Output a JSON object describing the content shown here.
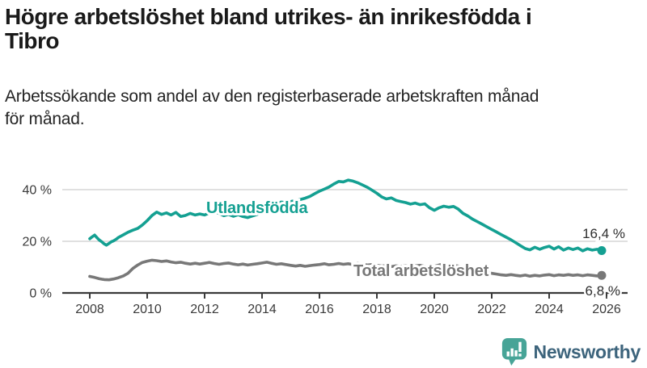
{
  "header": {
    "title_line1": "Högre arbetslöshet bland utrikes- än inrikesfödda i",
    "title_line2": "Tibro",
    "subtitle_line1": "Arbetssökande som andel av den registerbaserade arbetskraften månad",
    "subtitle_line2": "för månad."
  },
  "footer": {
    "brand": "Newsworthy"
  },
  "colors": {
    "accent_teal": "#14a092",
    "series_gray": "#787878",
    "grid": "#d6d6d6",
    "axis": "#3a3a3a",
    "tick_text": "#3a3a3a",
    "value_text": "#2e2e2e",
    "title_text": "#1a1a1a",
    "logo_icon": "#47a497",
    "logo_text": "#3d647c"
  },
  "chart_data": {
    "type": "line",
    "x_axis": {
      "ticks": [
        2008,
        2010,
        2012,
        2014,
        2016,
        2018,
        2020,
        2022,
        2024,
        2026
      ],
      "range": [
        2008,
        2026.5
      ]
    },
    "y_axis": {
      "ticks": [
        {
          "value": 0,
          "label": "0 %"
        },
        {
          "value": 20,
          "label": "20 %"
        },
        {
          "value": 40,
          "label": "40 %"
        }
      ],
      "range": [
        0,
        46
      ]
    },
    "grid": "horizontal-only",
    "legend_position": "inline-labels",
    "series": [
      {
        "name": "Utlandsfödda",
        "color": "#14a092",
        "end_label": "16,4 %",
        "end_value": 16.4,
        "points": [
          [
            2008.0,
            21.0
          ],
          [
            2008.08,
            21.7
          ],
          [
            2008.17,
            22.4
          ],
          [
            2008.25,
            21.4
          ],
          [
            2008.33,
            20.5
          ],
          [
            2008.42,
            19.8
          ],
          [
            2008.5,
            19.0
          ],
          [
            2008.58,
            18.5
          ],
          [
            2008.67,
            19.2
          ],
          [
            2008.75,
            19.8
          ],
          [
            2008.83,
            20.2
          ],
          [
            2008.92,
            20.8
          ],
          [
            2009.0,
            21.5
          ],
          [
            2009.17,
            22.5
          ],
          [
            2009.33,
            23.5
          ],
          [
            2009.5,
            24.3
          ],
          [
            2009.67,
            25.0
          ],
          [
            2009.83,
            26.3
          ],
          [
            2010.0,
            28.0
          ],
          [
            2010.17,
            30.0
          ],
          [
            2010.33,
            31.3
          ],
          [
            2010.5,
            30.4
          ],
          [
            2010.67,
            31.0
          ],
          [
            2010.83,
            30.2
          ],
          [
            2011.0,
            31.2
          ],
          [
            2011.17,
            29.6
          ],
          [
            2011.33,
            30.0
          ],
          [
            2011.5,
            30.8
          ],
          [
            2011.67,
            30.2
          ],
          [
            2011.83,
            30.6
          ],
          [
            2012.0,
            30.2
          ],
          [
            2012.17,
            31.0
          ],
          [
            2012.33,
            31.6
          ],
          [
            2012.5,
            30.8
          ],
          [
            2012.67,
            29.9
          ],
          [
            2012.83,
            30.4
          ],
          [
            2013.0,
            29.7
          ],
          [
            2013.17,
            30.3
          ],
          [
            2013.33,
            29.6
          ],
          [
            2013.5,
            29.2
          ],
          [
            2013.67,
            29.8
          ],
          [
            2013.83,
            30.4
          ],
          [
            2014.0,
            31.2
          ],
          [
            2014.17,
            32.4
          ],
          [
            2014.33,
            33.6
          ],
          [
            2014.5,
            34.6
          ],
          [
            2014.67,
            35.2
          ],
          [
            2014.83,
            35.0
          ],
          [
            2015.0,
            35.4
          ],
          [
            2015.17,
            35.8
          ],
          [
            2015.33,
            36.2
          ],
          [
            2015.5,
            36.7
          ],
          [
            2015.67,
            37.4
          ],
          [
            2015.83,
            38.4
          ],
          [
            2016.0,
            39.4
          ],
          [
            2016.17,
            40.2
          ],
          [
            2016.33,
            41.0
          ],
          [
            2016.5,
            42.2
          ],
          [
            2016.67,
            43.2
          ],
          [
            2016.83,
            43.0
          ],
          [
            2017.0,
            43.7
          ],
          [
            2017.17,
            43.3
          ],
          [
            2017.33,
            42.7
          ],
          [
            2017.5,
            41.8
          ],
          [
            2017.67,
            40.9
          ],
          [
            2017.83,
            39.8
          ],
          [
            2018.0,
            38.6
          ],
          [
            2018.17,
            37.2
          ],
          [
            2018.33,
            36.4
          ],
          [
            2018.5,
            36.8
          ],
          [
            2018.67,
            35.8
          ],
          [
            2018.83,
            35.4
          ],
          [
            2019.0,
            35.0
          ],
          [
            2019.17,
            34.4
          ],
          [
            2019.33,
            34.8
          ],
          [
            2019.5,
            34.2
          ],
          [
            2019.67,
            34.5
          ],
          [
            2019.83,
            33.0
          ],
          [
            2020.0,
            32.0
          ],
          [
            2020.17,
            33.0
          ],
          [
            2020.33,
            33.6
          ],
          [
            2020.5,
            33.2
          ],
          [
            2020.67,
            33.5
          ],
          [
            2020.83,
            32.5
          ],
          [
            2021.0,
            30.8
          ],
          [
            2021.17,
            29.8
          ],
          [
            2021.33,
            28.6
          ],
          [
            2021.5,
            27.6
          ],
          [
            2021.67,
            26.6
          ],
          [
            2021.83,
            25.6
          ],
          [
            2022.0,
            24.6
          ],
          [
            2022.17,
            23.6
          ],
          [
            2022.33,
            22.6
          ],
          [
            2022.5,
            21.6
          ],
          [
            2022.67,
            20.6
          ],
          [
            2022.83,
            19.5
          ],
          [
            2023.0,
            18.3
          ],
          [
            2023.17,
            17.2
          ],
          [
            2023.33,
            16.7
          ],
          [
            2023.5,
            17.7
          ],
          [
            2023.67,
            16.9
          ],
          [
            2023.83,
            17.6
          ],
          [
            2024.0,
            18.1
          ],
          [
            2024.17,
            17.0
          ],
          [
            2024.33,
            17.9
          ],
          [
            2024.5,
            16.6
          ],
          [
            2024.67,
            17.4
          ],
          [
            2024.83,
            16.8
          ],
          [
            2025.0,
            17.4
          ],
          [
            2025.17,
            16.3
          ],
          [
            2025.33,
            17.1
          ],
          [
            2025.5,
            16.6
          ],
          [
            2025.67,
            16.9
          ],
          [
            2025.83,
            16.4
          ]
        ]
      },
      {
        "name": "Total arbetslöshet",
        "color": "#787878",
        "end_label": "6,8 %",
        "end_value": 6.8,
        "points": [
          [
            2008.0,
            6.4
          ],
          [
            2008.17,
            6.0
          ],
          [
            2008.33,
            5.5
          ],
          [
            2008.5,
            5.2
          ],
          [
            2008.67,
            5.1
          ],
          [
            2008.83,
            5.4
          ],
          [
            2009.0,
            5.9
          ],
          [
            2009.17,
            6.6
          ],
          [
            2009.33,
            7.6
          ],
          [
            2009.5,
            9.5
          ],
          [
            2009.67,
            10.8
          ],
          [
            2009.83,
            11.8
          ],
          [
            2010.0,
            12.3
          ],
          [
            2010.17,
            12.7
          ],
          [
            2010.33,
            12.5
          ],
          [
            2010.5,
            12.2
          ],
          [
            2010.67,
            12.4
          ],
          [
            2010.83,
            12.0
          ],
          [
            2011.0,
            11.7
          ],
          [
            2011.17,
            11.9
          ],
          [
            2011.33,
            11.5
          ],
          [
            2011.5,
            11.2
          ],
          [
            2011.67,
            11.5
          ],
          [
            2011.83,
            11.2
          ],
          [
            2012.0,
            11.5
          ],
          [
            2012.17,
            11.8
          ],
          [
            2012.33,
            11.4
          ],
          [
            2012.5,
            11.1
          ],
          [
            2012.67,
            11.4
          ],
          [
            2012.83,
            11.6
          ],
          [
            2013.0,
            11.2
          ],
          [
            2013.17,
            10.9
          ],
          [
            2013.33,
            11.2
          ],
          [
            2013.5,
            10.8
          ],
          [
            2013.67,
            11.1
          ],
          [
            2013.83,
            11.3
          ],
          [
            2014.0,
            11.6
          ],
          [
            2014.17,
            11.9
          ],
          [
            2014.33,
            11.5
          ],
          [
            2014.5,
            11.1
          ],
          [
            2014.67,
            11.3
          ],
          [
            2014.83,
            11.0
          ],
          [
            2015.0,
            10.7
          ],
          [
            2015.17,
            10.4
          ],
          [
            2015.33,
            10.7
          ],
          [
            2015.5,
            10.3
          ],
          [
            2015.67,
            10.6
          ],
          [
            2015.83,
            10.8
          ],
          [
            2016.0,
            11.0
          ],
          [
            2016.17,
            11.3
          ],
          [
            2016.33,
            10.9
          ],
          [
            2016.5,
            11.1
          ],
          [
            2016.67,
            11.4
          ],
          [
            2016.83,
            11.1
          ],
          [
            2017.0,
            11.3
          ],
          [
            2017.17,
            11.0
          ],
          [
            2017.33,
            11.4
          ],
          [
            2017.5,
            11.1
          ],
          [
            2017.67,
            10.8
          ],
          [
            2017.83,
            11.0
          ],
          [
            2018.0,
            10.7
          ],
          [
            2018.17,
            10.4
          ],
          [
            2018.33,
            10.6
          ],
          [
            2018.5,
            10.2
          ],
          [
            2018.67,
            10.5
          ],
          [
            2018.83,
            10.3
          ],
          [
            2019.0,
            10.5
          ],
          [
            2019.17,
            10.2
          ],
          [
            2019.33,
            10.5
          ],
          [
            2019.5,
            10.7
          ],
          [
            2019.67,
            10.3
          ],
          [
            2019.83,
            10.1
          ],
          [
            2020.0,
            10.3
          ],
          [
            2020.17,
            10.8
          ],
          [
            2020.33,
            11.3
          ],
          [
            2020.5,
            11.0
          ],
          [
            2020.67,
            10.7
          ],
          [
            2020.83,
            10.4
          ],
          [
            2021.0,
            10.1
          ],
          [
            2021.17,
            9.6
          ],
          [
            2021.33,
            9.1
          ],
          [
            2021.5,
            8.7
          ],
          [
            2021.67,
            8.3
          ],
          [
            2021.83,
            7.9
          ],
          [
            2022.0,
            7.6
          ],
          [
            2022.17,
            7.3
          ],
          [
            2022.33,
            7.0
          ],
          [
            2022.5,
            6.8
          ],
          [
            2022.67,
            7.1
          ],
          [
            2022.83,
            6.8
          ],
          [
            2023.0,
            6.6
          ],
          [
            2023.17,
            6.9
          ],
          [
            2023.33,
            6.5
          ],
          [
            2023.5,
            6.8
          ],
          [
            2023.67,
            6.6
          ],
          [
            2023.83,
            6.9
          ],
          [
            2024.0,
            7.1
          ],
          [
            2024.17,
            6.7
          ],
          [
            2024.33,
            7.0
          ],
          [
            2024.5,
            6.8
          ],
          [
            2024.67,
            7.1
          ],
          [
            2024.83,
            6.8
          ],
          [
            2025.0,
            7.0
          ],
          [
            2025.17,
            6.7
          ],
          [
            2025.33,
            7.0
          ],
          [
            2025.5,
            6.8
          ],
          [
            2025.67,
            6.6
          ],
          [
            2025.83,
            6.8
          ]
        ]
      }
    ]
  }
}
